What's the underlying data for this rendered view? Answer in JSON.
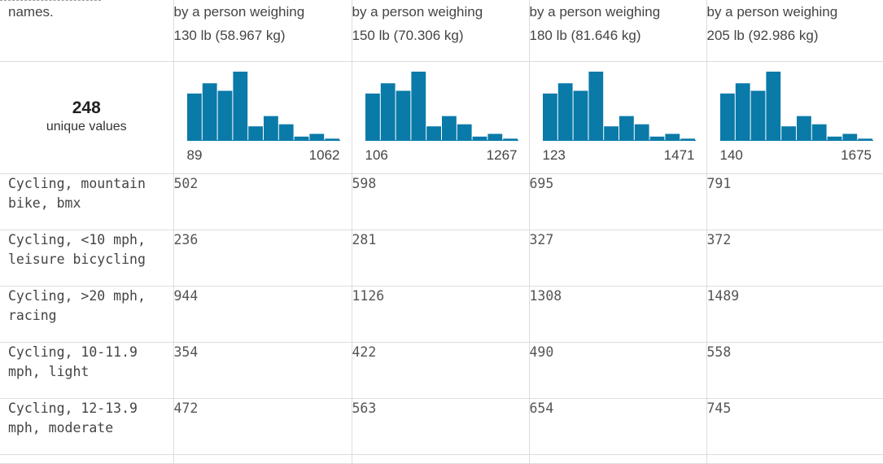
{
  "header": {
    "first_col": "names.",
    "columns": [
      {
        "line1": "by a person weighing",
        "line2": "130 lb (58.967 kg)"
      },
      {
        "line1": "by a person weighing",
        "line2": "150 lb (70.306 kg)"
      },
      {
        "line1": "by a person weighing",
        "line2": "180 lb (81.646 kg)"
      },
      {
        "line1": "by a person weighing",
        "line2": "205 lb (92.986 kg)"
      }
    ]
  },
  "summary": {
    "count": "248",
    "caption": "unique values"
  },
  "accent_color": "#0a7aa8",
  "chart_data": [
    {
      "type": "bar",
      "values": [
        0.68,
        0.83,
        0.72,
        1.0,
        0.2,
        0.35,
        0.23,
        0.05,
        0.09,
        0.02
      ],
      "min_label": "89",
      "max_label": "1062"
    },
    {
      "type": "bar",
      "values": [
        0.68,
        0.83,
        0.72,
        1.0,
        0.2,
        0.35,
        0.23,
        0.05,
        0.09,
        0.02
      ],
      "min_label": "106",
      "max_label": "1267"
    },
    {
      "type": "bar",
      "values": [
        0.68,
        0.83,
        0.72,
        1.0,
        0.2,
        0.35,
        0.23,
        0.05,
        0.09,
        0.02
      ],
      "min_label": "123",
      "max_label": "1471"
    },
    {
      "type": "bar",
      "values": [
        0.68,
        0.83,
        0.72,
        1.0,
        0.2,
        0.35,
        0.23,
        0.05,
        0.09,
        0.02
      ],
      "min_label": "140",
      "max_label": "1675"
    }
  ],
  "rows": [
    {
      "name": "Cycling, mountain bike, bmx",
      "values": [
        "502",
        "598",
        "695",
        "791"
      ]
    },
    {
      "name": "Cycling, <10 mph, leisure bicycling",
      "values": [
        "236",
        "281",
        "327",
        "372"
      ]
    },
    {
      "name": "Cycling, >20 mph, racing",
      "values": [
        "944",
        "1126",
        "1308",
        "1489"
      ]
    },
    {
      "name": "Cycling, 10-11.9 mph, light",
      "values": [
        "354",
        "422",
        "490",
        "558"
      ]
    },
    {
      "name": "Cycling, 12-13.9 mph, moderate",
      "values": [
        "472",
        "563",
        "654",
        "745"
      ]
    }
  ]
}
